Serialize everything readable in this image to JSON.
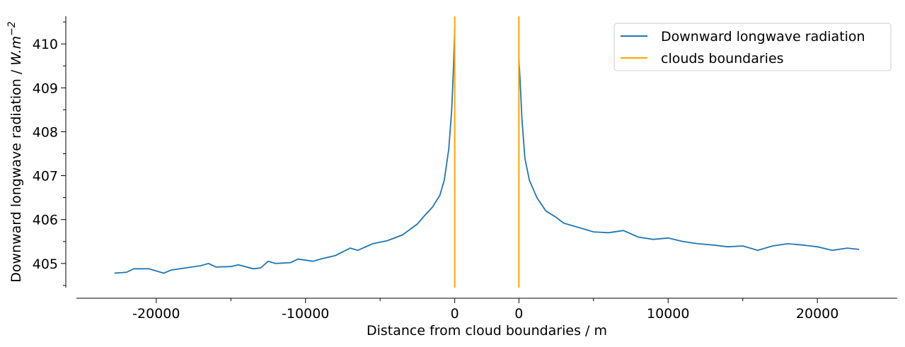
{
  "chart_data": {
    "type": "line",
    "xlabel": "Distance from cloud boundaries / m",
    "ylabel": "Downward longwave radiation / ",
    "ylabel_unit": "W.m",
    "ylabel_exp": "−2",
    "xlim": [
      -27500,
      27500
    ],
    "ylim": [
      404.45,
      410.63
    ],
    "xticks": [
      {
        "value": -22150,
        "label": "-20000"
      },
      {
        "value": -12150,
        "label": "-10000"
      },
      {
        "value": -2150,
        "label": "0"
      },
      {
        "value": 2150,
        "label": "0"
      },
      {
        "value": 12150,
        "label": "10000"
      },
      {
        "value": 22150,
        "label": "20000"
      }
    ],
    "xminorticks": [
      -17150,
      -7150,
      7150,
      17150
    ],
    "yticks": [
      405,
      406,
      407,
      408,
      409,
      410
    ],
    "yminorticks": [
      404.5,
      405.5,
      406.5,
      407.5,
      408.5,
      409.5,
      410.5
    ],
    "legend": "upper right",
    "series": [
      {
        "name": "Downward longwave radiation",
        "color": "#1f77b4",
        "x": [
          -24950,
          -24150,
          -23650,
          -22650,
          -21650,
          -21150,
          -20150,
          -19150,
          -18650,
          -18150,
          -17150,
          -16650,
          -15650,
          -15150,
          -14650,
          -14150,
          -13150,
          -12650,
          -11650,
          -11150,
          -10150,
          -9150,
          -8650,
          -7650,
          -6650,
          -5650,
          -4650,
          -4150,
          -3650,
          -3150,
          -2850,
          -2550,
          -2350,
          -2230,
          -2150,
          null,
          2150,
          2230,
          2350,
          2550,
          2850,
          3350,
          3950,
          4650,
          5150,
          6150,
          7150,
          8150,
          9150,
          10150,
          11150,
          12150,
          13150,
          14150,
          15150,
          16150,
          17150,
          18150,
          19150,
          20150,
          21150,
          22150,
          23150,
          24150,
          24950
        ],
        "values": [
          404.78,
          404.8,
          404.88,
          404.88,
          404.78,
          404.85,
          404.9,
          404.95,
          405.0,
          404.92,
          404.93,
          404.97,
          404.88,
          404.9,
          405.05,
          405.0,
          405.02,
          405.1,
          405.05,
          405.1,
          405.18,
          405.35,
          405.3,
          405.45,
          405.52,
          405.65,
          405.9,
          406.1,
          406.28,
          406.55,
          406.9,
          407.6,
          408.5,
          409.5,
          410.35,
          null,
          409.65,
          409.2,
          408.3,
          407.4,
          406.9,
          406.5,
          406.2,
          406.05,
          405.92,
          405.82,
          405.72,
          405.7,
          405.75,
          405.6,
          405.55,
          405.58,
          405.5,
          405.45,
          405.42,
          405.38,
          405.4,
          405.3,
          405.4,
          405.45,
          405.42,
          405.38,
          405.3,
          405.35,
          405.32
        ]
      },
      {
        "name": "clouds boundaries",
        "color": "orange",
        "vlines": [
          -2150,
          2150
        ]
      }
    ]
  }
}
